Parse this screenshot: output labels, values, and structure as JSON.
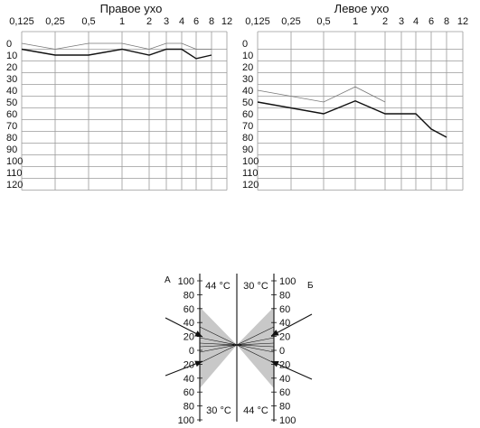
{
  "chart_data": [
    {
      "type": "line",
      "title": "Правое ухо",
      "x_ticks": [
        "0,125",
        "0,25",
        "0,5",
        "1",
        "2",
        "3",
        "4",
        "6",
        "8",
        "12"
      ],
      "y_ticks": [
        "0",
        "10",
        "20",
        "30",
        "40",
        "50",
        "60",
        "70",
        "80",
        "90",
        "100",
        "110",
        "120"
      ],
      "ylim": [
        0,
        125
      ],
      "grid": true,
      "series": [
        {
          "style": "thin-gray",
          "x": [
            "0,125",
            "0,25",
            "0,5",
            "1",
            "2",
            "3",
            "4",
            "6",
            "8"
          ],
          "y": [
            0,
            5,
            0,
            0,
            5,
            0,
            0,
            5,
            5
          ]
        },
        {
          "style": "thick-black",
          "x": [
            "0,125",
            "0,25",
            "0,5",
            "1",
            "2",
            "3",
            "4",
            "6",
            "8"
          ],
          "y": [
            5,
            10,
            10,
            5,
            10,
            5,
            5,
            13,
            10
          ]
        }
      ]
    },
    {
      "type": "line",
      "title": "Левое ухо",
      "x_ticks": [
        "0,125",
        "0,25",
        "0,5",
        "1",
        "2",
        "3",
        "4",
        "6",
        "8",
        "12"
      ],
      "y_ticks": [
        "0",
        "10",
        "20",
        "30",
        "40",
        "50",
        "60",
        "70",
        "80",
        "90",
        "100",
        "110",
        "120"
      ],
      "ylim": [
        0,
        125
      ],
      "grid": true,
      "series": [
        {
          "style": "thin-gray",
          "x": [
            "0,125",
            "0,5",
            "1",
            "2"
          ],
          "y": [
            40,
            50,
            37,
            50
          ]
        },
        {
          "style": "thick-black",
          "x": [
            "0,125",
            "0,5",
            "1",
            "2",
            "4",
            "6",
            "8"
          ],
          "y": [
            50,
            60,
            49,
            60,
            60,
            73,
            80
          ]
        }
      ]
    },
    {
      "type": "diagram",
      "left_label": "А",
      "right_label": "Б",
      "scale": [
        "100",
        "80",
        "60",
        "40",
        "20",
        "0",
        "20",
        "40",
        "60",
        "80",
        "100"
      ],
      "top_left_temp": "44 °C",
      "top_right_temp": "30 °C",
      "bottom_left_temp": "30 °C",
      "bottom_right_temp": "44 °C",
      "colors": {
        "fan": "#c8c8c8",
        "line": "#111111",
        "grid": "#9a9a9a"
      }
    }
  ]
}
